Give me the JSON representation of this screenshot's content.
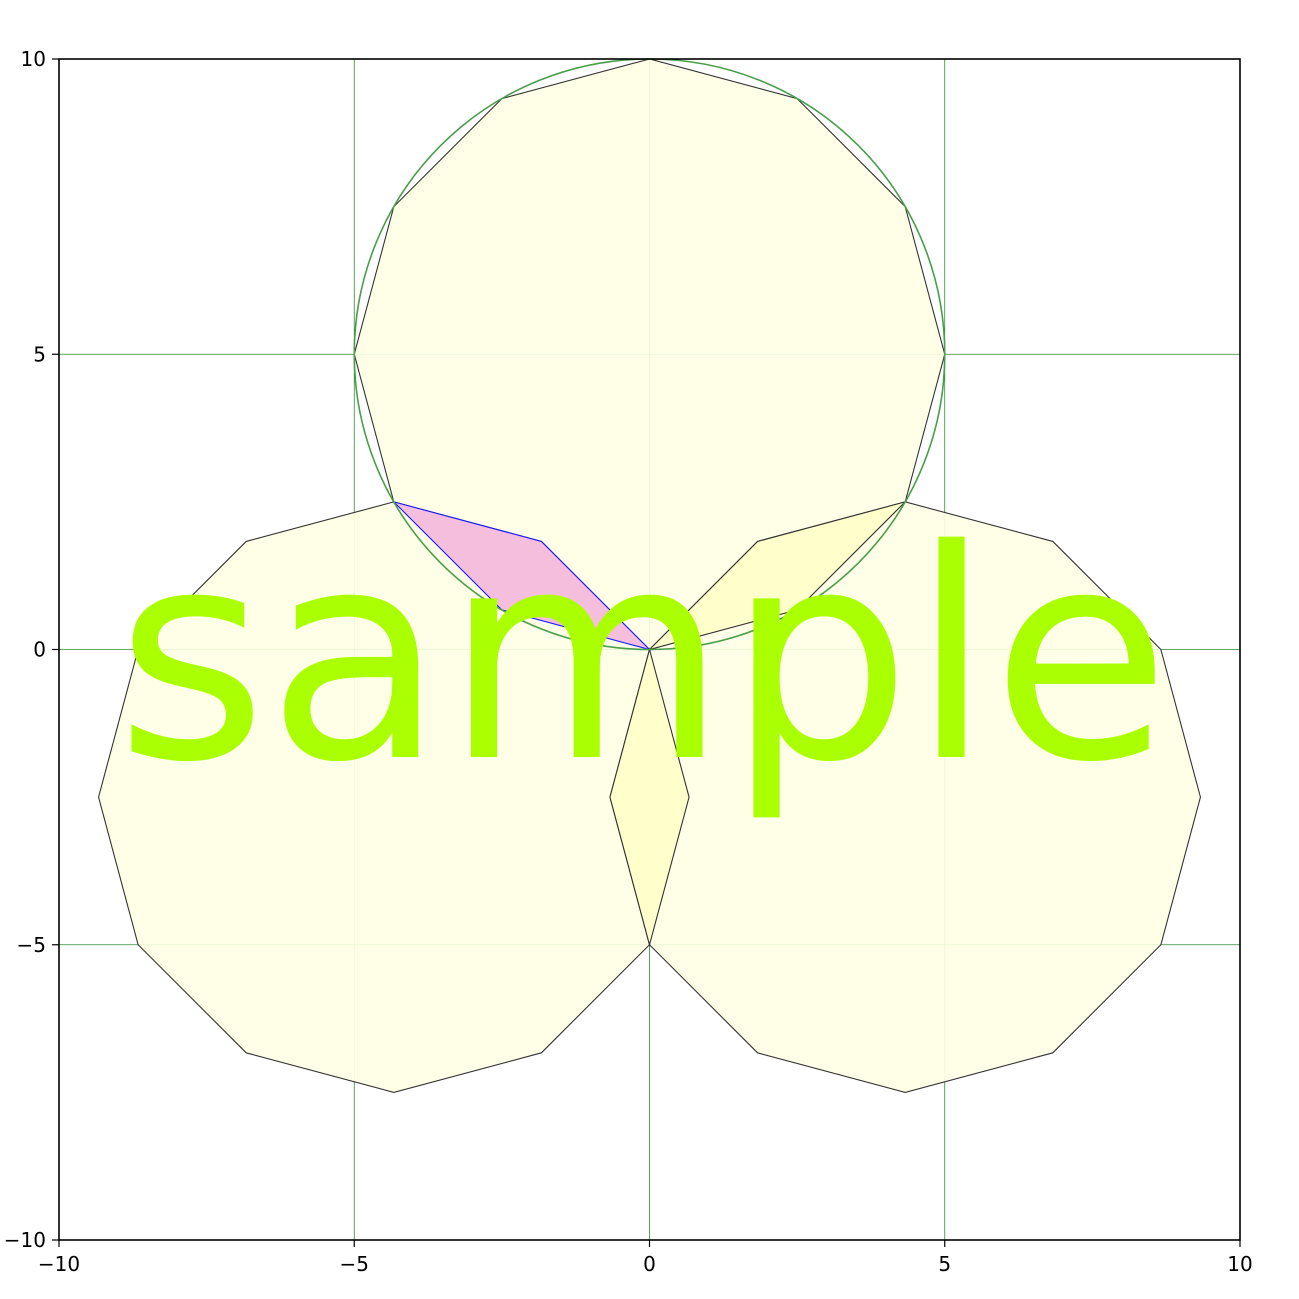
{
  "figure": {
    "xlim": [
      -10,
      10
    ],
    "ylim": [
      -10,
      10
    ],
    "grid": true,
    "grid_color": "#2e8b2e",
    "x_ticks": [
      -10,
      -5,
      0,
      5,
      10
    ],
    "y_ticks": [
      -10,
      -5,
      0,
      5,
      10
    ],
    "x_tick_labels": [
      "−10",
      "−5",
      "0",
      "5",
      "10"
    ],
    "y_tick_labels": [
      "−10",
      "−5",
      "0",
      "5",
      "10"
    ],
    "circumcircle": {
      "center": [
        0,
        5
      ],
      "radius": 5,
      "color": "#4a9e4a"
    },
    "dodecagons": [
      {
        "name": "top",
        "center": [
          0,
          5
        ],
        "circumradius": 5,
        "fill": "#ffffe4",
        "stroke": "#333333"
      },
      {
        "name": "bottom-left",
        "center": [
          -4.33,
          -2.5
        ],
        "circumradius": 5,
        "fill": "#ffffe4",
        "stroke": "#333333"
      },
      {
        "name": "bottom-right",
        "center": [
          4.33,
          -2.5
        ],
        "circumradius": 5,
        "fill": "#ffffe4",
        "stroke": "#333333"
      }
    ],
    "rhombi": [
      {
        "name": "pink-rhombus",
        "points": [
          [
            0,
            0
          ],
          [
            -1.83,
            1.83
          ],
          [
            -4.33,
            2.5
          ],
          [
            -2.5,
            0.67
          ]
        ],
        "fill": "#f5bedc",
        "stroke": "#1a1aff"
      },
      {
        "name": "upper-right-rhombus",
        "points": [
          [
            0,
            0
          ],
          [
            1.83,
            1.83
          ],
          [
            4.33,
            2.5
          ],
          [
            2.5,
            0.67
          ]
        ],
        "fill": "#ffffcc",
        "stroke": "#333333"
      },
      {
        "name": "lower-rhombus",
        "points": [
          [
            0,
            0
          ],
          [
            0.67,
            -2.5
          ],
          [
            0,
            -5
          ],
          [
            -0.67,
            -2.5
          ]
        ],
        "fill": "#ffffcc",
        "stroke": "#333333"
      }
    ],
    "watermark": {
      "text": "sample",
      "color": "#aaff00"
    }
  }
}
